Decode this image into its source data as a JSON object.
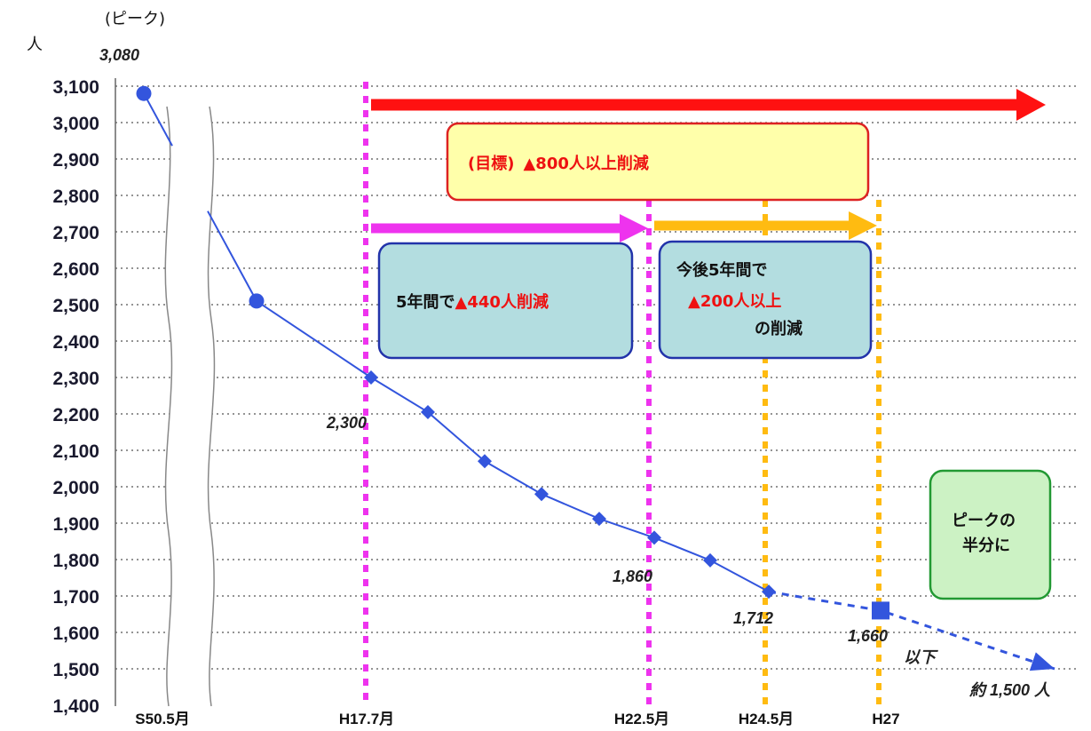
{
  "colors": {
    "series": "#3355dd",
    "goal_arrow": "#ff1111",
    "phase1": "#ee33ee",
    "phase2": "#ffbb11",
    "goal_box_fill": "#ffffaa",
    "goal_box_border": "#dd2222",
    "info_box_fill": "#b3dde0",
    "info_box_border": "#2233aa",
    "half_box_fill": "#ccf2c4",
    "half_box_border": "#229933",
    "highlight_text": "#ee1111"
  },
  "chart_data": {
    "type": "line",
    "y_unit": "人",
    "ylim": [
      1400,
      3100
    ],
    "y_ticks": [
      "3,100",
      "3,000",
      "2,900",
      "2,800",
      "2,700",
      "2,600",
      "2,500",
      "2,400",
      "2,300",
      "2,200",
      "2,100",
      "2,000",
      "1,900",
      "1,800",
      "1,700",
      "1,600",
      "1,500",
      "1,400"
    ],
    "x_tick_labels": [
      "S50.5月",
      "H17.7月",
      "H22.5月",
      "H24.5月",
      "H27"
    ],
    "axis_break": true,
    "grid": "horizontal-dotted",
    "series": [
      {
        "values": [
          3080,
          2510,
          2300,
          2205,
          2070,
          1980,
          1912,
          1860,
          1798,
          1712
        ],
        "markers": [
          "circle",
          "circle",
          "diamond",
          "diamond",
          "diamond",
          "diamond",
          "diamond",
          "diamond",
          "diamond",
          "diamond"
        ]
      },
      {
        "style": "dashed",
        "values": [
          1712,
          1660,
          1500
        ],
        "markers": [
          "none",
          "square",
          "arrow"
        ]
      }
    ],
    "data_labels": {
      "peak": "3,080",
      "h17": "2,300",
      "h22": "1,860",
      "h24": "1,712",
      "h27": "1,660",
      "final": "約 1,500 人"
    },
    "peak_note": "(ピーク)",
    "h27_note": "以下",
    "annotations": {
      "goal": {
        "prefix": "(目標)",
        "text": "▲800人以上削減"
      },
      "phase1": {
        "prefix": "5年間で",
        "highlight": "▲440人削減"
      },
      "phase2": {
        "line1": "今後5年間で",
        "highlight": "▲200人以上",
        "line3": "の削減"
      },
      "half": {
        "line1": "ピークの",
        "line2": "半分に"
      }
    }
  }
}
